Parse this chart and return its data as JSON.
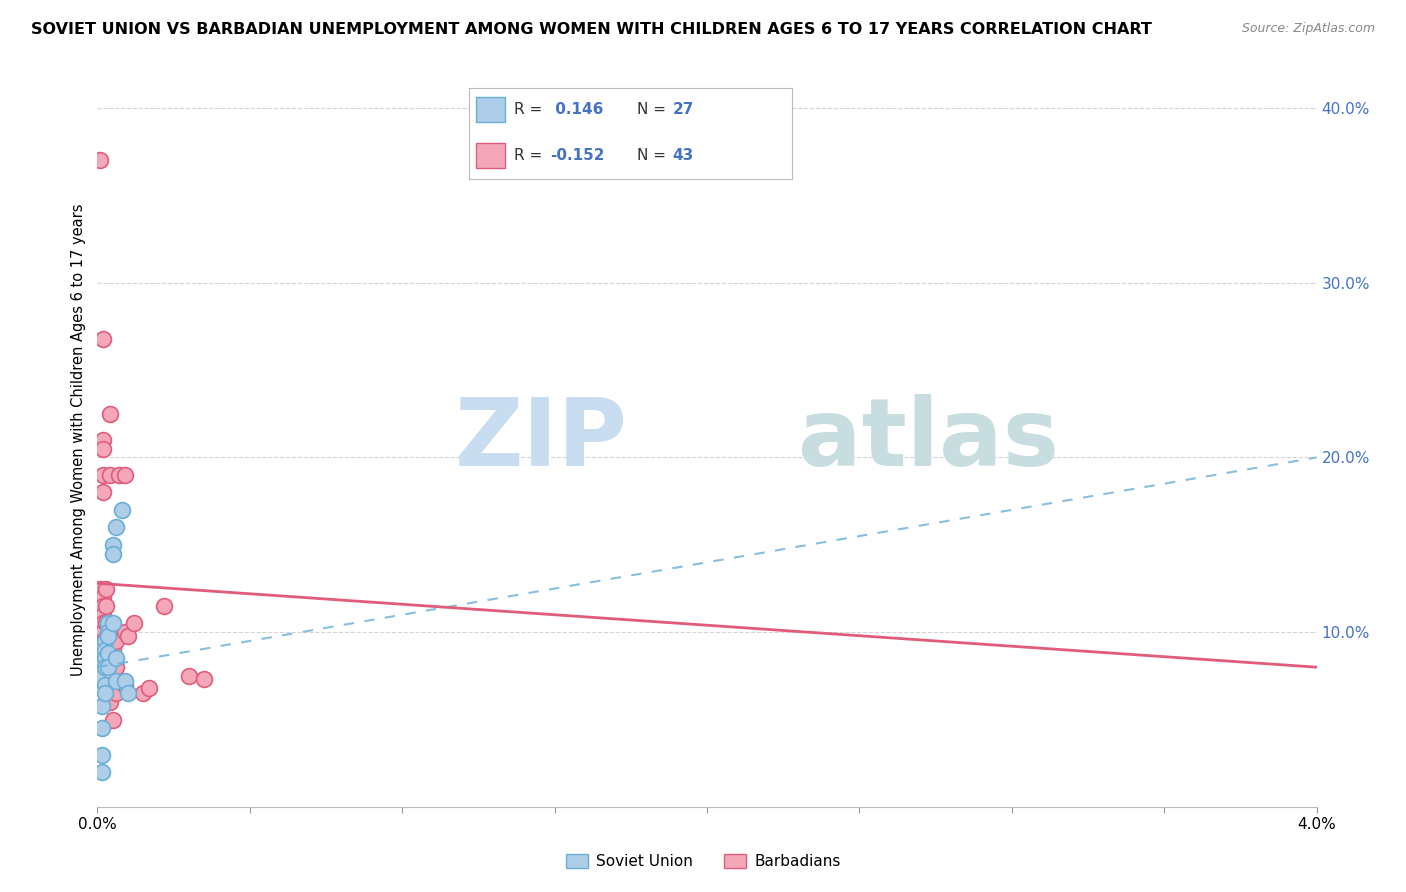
{
  "title": "SOVIET UNION VS BARBADIAN UNEMPLOYMENT AMONG WOMEN WITH CHILDREN AGES 6 TO 17 YEARS CORRELATION CHART",
  "source": "Source: ZipAtlas.com",
  "ylabel": "Unemployment Among Women with Children Ages 6 to 17 years",
  "x_min": 0.0,
  "x_max": 0.04,
  "y_min": 0.0,
  "y_max": 0.42,
  "y_ticks": [
    0.1,
    0.2,
    0.3,
    0.4
  ],
  "y_tick_labels": [
    "10.0%",
    "20.0%",
    "30.0%",
    "40.0%"
  ],
  "soviet_R": 0.146,
  "soviet_N": 27,
  "barbadian_R": -0.152,
  "barbadian_N": 43,
  "soviet_color": "#aecde8",
  "soviet_edge_color": "#6aaed6",
  "barbadian_color": "#f4a7b9",
  "barbadian_edge_color": "#e05c7a",
  "soviet_line_color": "#6aaed6",
  "barbadian_line_color": "#e05c7a",
  "soviet_union_points": [
    [
      0.0,
      0.08
    ],
    [
      0.0,
      0.075
    ],
    [
      0.0,
      0.09
    ],
    [
      0.00015,
      0.058
    ],
    [
      0.00015,
      0.045
    ],
    [
      0.00015,
      0.03
    ],
    [
      0.00015,
      0.02
    ],
    [
      0.00025,
      0.095
    ],
    [
      0.00025,
      0.09
    ],
    [
      0.00025,
      0.085
    ],
    [
      0.00025,
      0.08
    ],
    [
      0.00025,
      0.07
    ],
    [
      0.00025,
      0.065
    ],
    [
      0.00035,
      0.105
    ],
    [
      0.00035,
      0.1
    ],
    [
      0.00035,
      0.098
    ],
    [
      0.00035,
      0.088
    ],
    [
      0.00035,
      0.08
    ],
    [
      0.0005,
      0.15
    ],
    [
      0.0005,
      0.145
    ],
    [
      0.0005,
      0.105
    ],
    [
      0.0006,
      0.16
    ],
    [
      0.0006,
      0.085
    ],
    [
      0.0006,
      0.072
    ],
    [
      0.0008,
      0.17
    ],
    [
      0.0009,
      0.072
    ],
    [
      0.001,
      0.065
    ]
  ],
  "barbadian_points": [
    [
      0.0001,
      0.37
    ],
    [
      0.0001,
      0.125
    ],
    [
      0.0001,
      0.115
    ],
    [
      0.0001,
      0.105
    ],
    [
      0.0002,
      0.268
    ],
    [
      0.0002,
      0.21
    ],
    [
      0.0002,
      0.205
    ],
    [
      0.0002,
      0.19
    ],
    [
      0.0002,
      0.18
    ],
    [
      0.0002,
      0.12
    ],
    [
      0.0002,
      0.115
    ],
    [
      0.0002,
      0.11
    ],
    [
      0.0002,
      0.105
    ],
    [
      0.0002,
      0.1
    ],
    [
      0.0002,
      0.095
    ],
    [
      0.0003,
      0.125
    ],
    [
      0.0003,
      0.115
    ],
    [
      0.0003,
      0.105
    ],
    [
      0.0003,
      0.095
    ],
    [
      0.0003,
      0.07
    ],
    [
      0.0003,
      0.06
    ],
    [
      0.0004,
      0.225
    ],
    [
      0.0004,
      0.19
    ],
    [
      0.0004,
      0.105
    ],
    [
      0.0004,
      0.08
    ],
    [
      0.0004,
      0.06
    ],
    [
      0.0005,
      0.09
    ],
    [
      0.0005,
      0.08
    ],
    [
      0.0005,
      0.05
    ],
    [
      0.0006,
      0.095
    ],
    [
      0.0006,
      0.08
    ],
    [
      0.0006,
      0.065
    ],
    [
      0.0007,
      0.19
    ],
    [
      0.0009,
      0.19
    ],
    [
      0.0009,
      0.1
    ],
    [
      0.0009,
      0.07
    ],
    [
      0.001,
      0.098
    ],
    [
      0.0012,
      0.105
    ],
    [
      0.0015,
      0.065
    ],
    [
      0.0017,
      0.068
    ],
    [
      0.0022,
      0.115
    ],
    [
      0.003,
      0.075
    ],
    [
      0.0035,
      0.073
    ]
  ],
  "soviet_trend_x": [
    0.0,
    0.04
  ],
  "soviet_trend_y": [
    0.08,
    0.2
  ],
  "barbadian_trend_x": [
    0.0,
    0.04
  ],
  "barbadian_trend_y": [
    0.128,
    0.08
  ],
  "x_tick_positions": [
    0.0,
    0.005,
    0.01,
    0.015,
    0.02,
    0.025,
    0.03,
    0.035,
    0.04
  ],
  "grid_y_color": "#d0d0d0",
  "background_color": "#ffffff"
}
